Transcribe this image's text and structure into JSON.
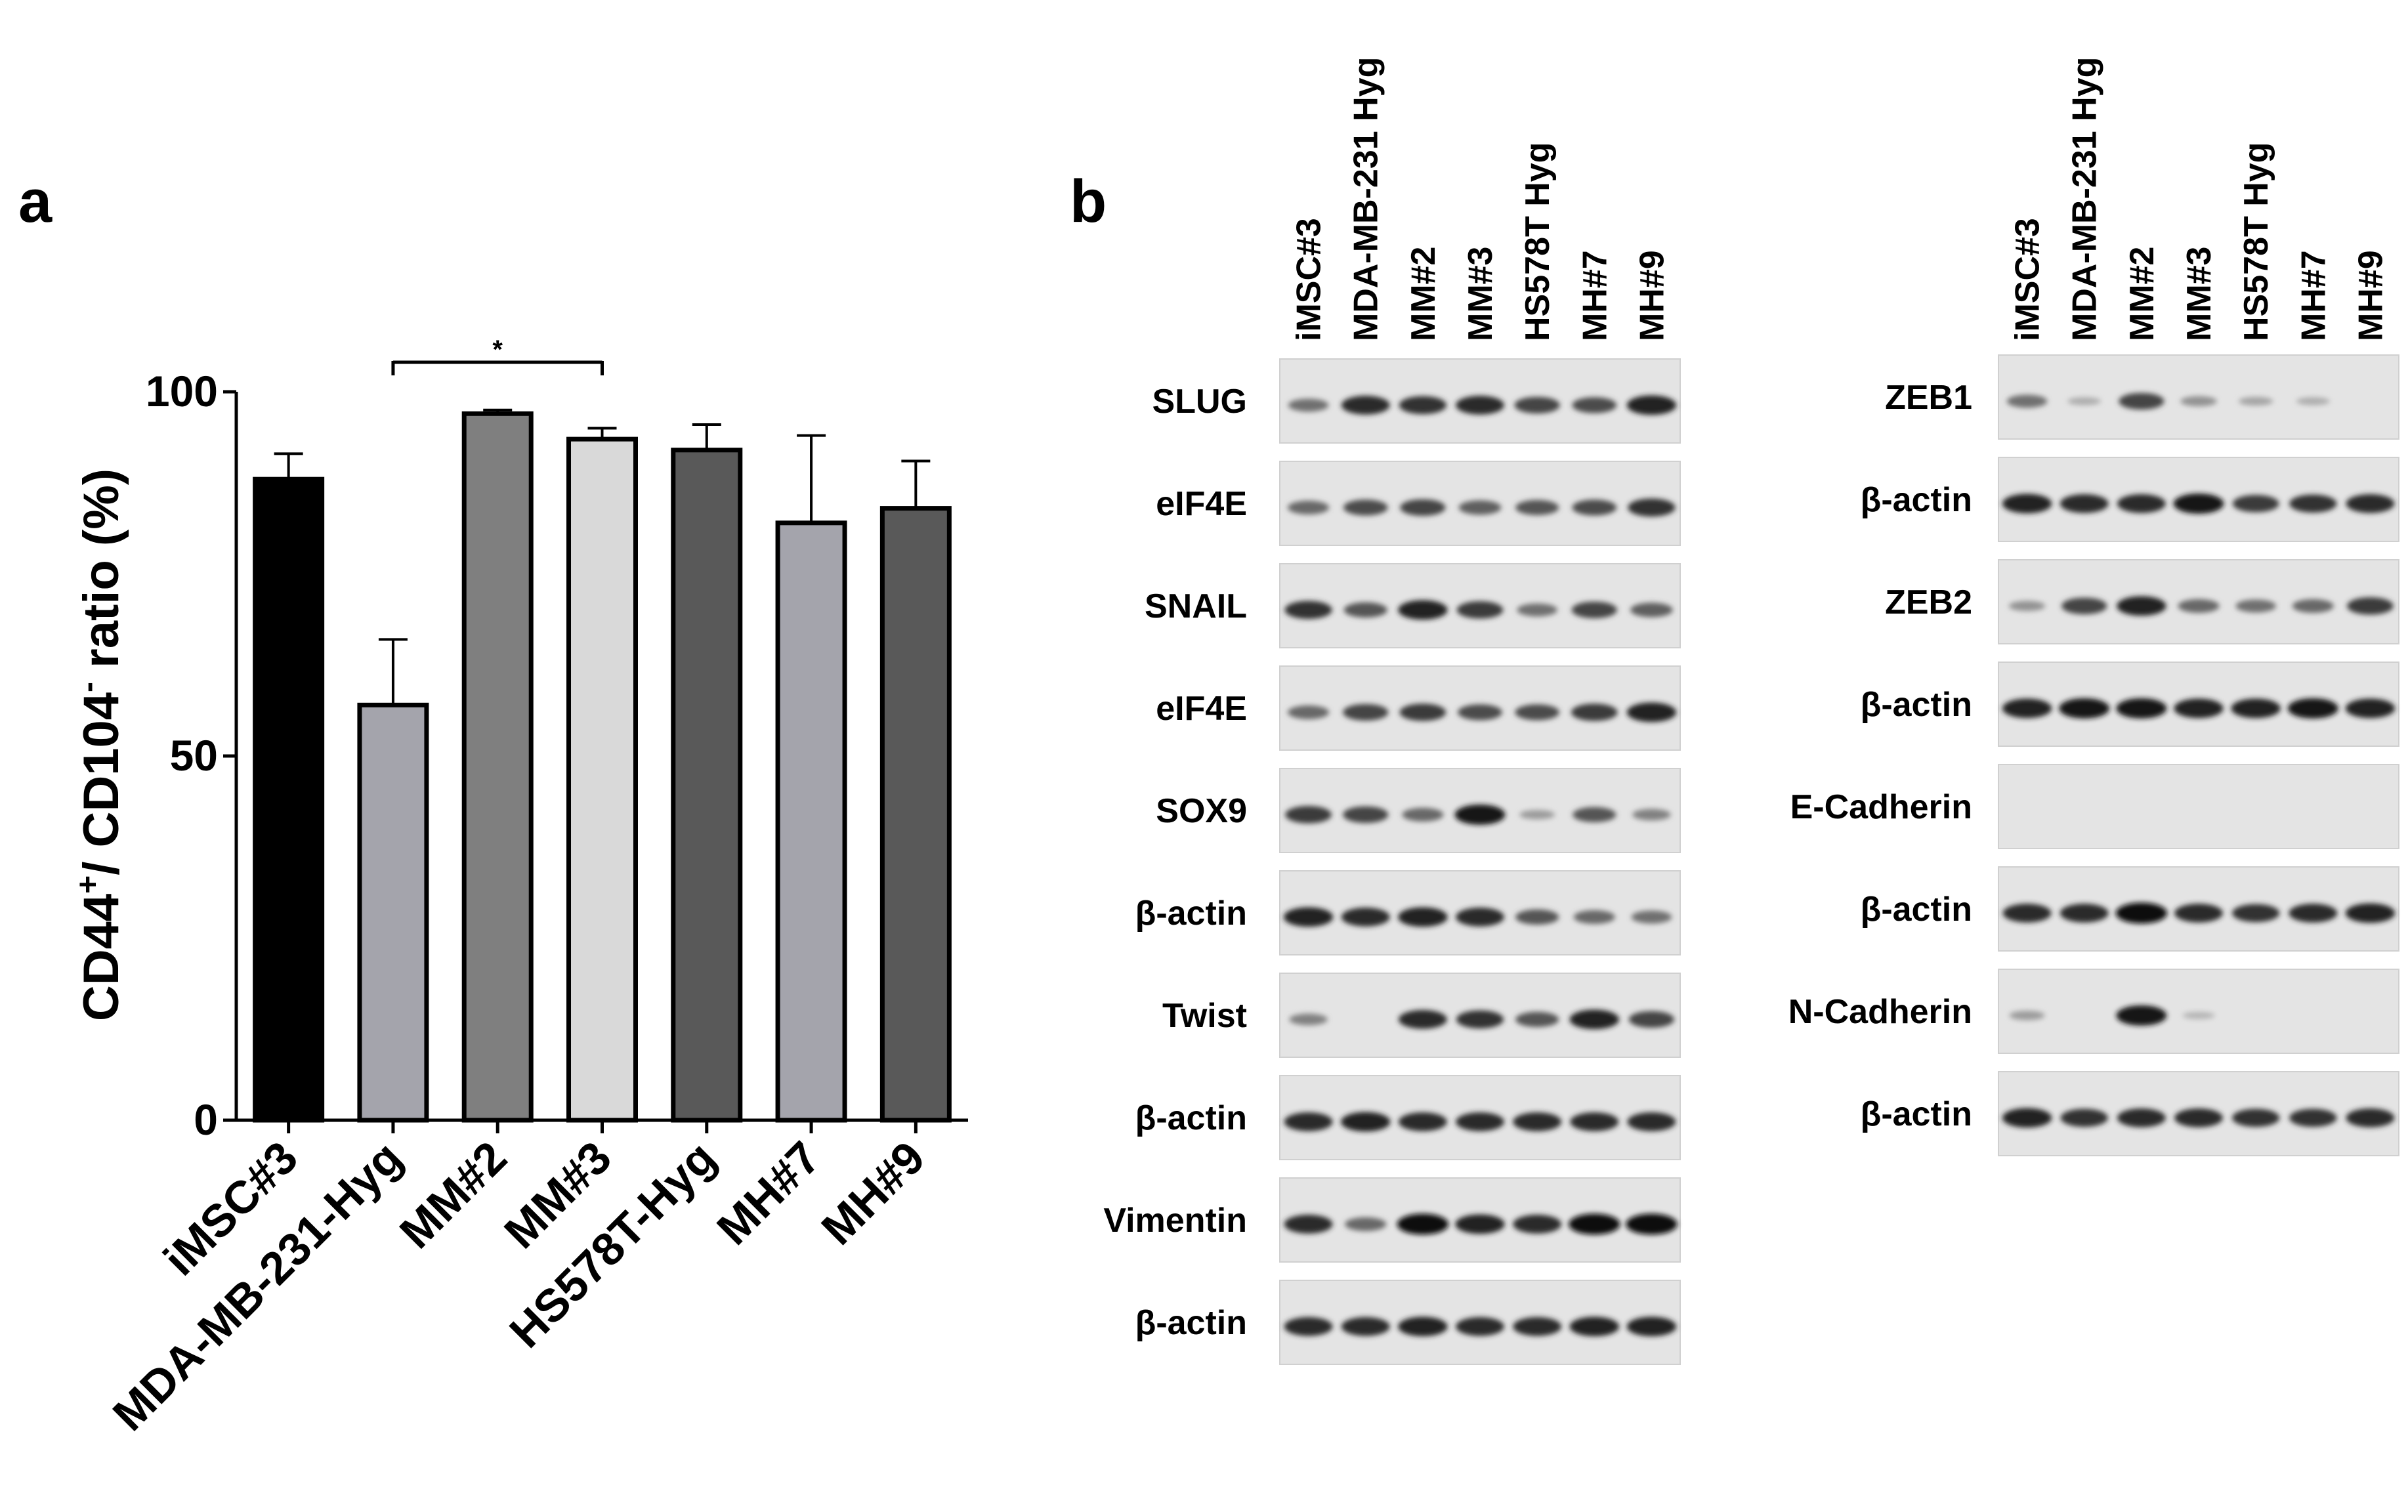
{
  "panel_a_letter": "a",
  "panel_b_letter": "b",
  "chart_data": {
    "type": "bar",
    "ylabel_parts": [
      "CD44",
      "+",
      "/ CD104",
      "-",
      " ratio (%)"
    ],
    "categories": [
      "iMSC#3",
      "MDA-MB-231-Hyg",
      "MM#2",
      "MM#3",
      "HS578T-Hyg",
      "MH#7",
      "MH#9"
    ],
    "values": [
      88,
      57,
      97,
      93.5,
      92,
      82,
      84
    ],
    "errors": [
      3.5,
      9,
      0.5,
      1.5,
      3.5,
      12,
      6.5
    ],
    "bar_colors": [
      "#000000",
      "#a4a4ac",
      "#7f7f7f",
      "#d9d9d9",
      "#595959",
      "#a4a4ac",
      "#595959"
    ],
    "ylim": [
      0,
      100
    ],
    "yticks": [
      0,
      50,
      100
    ],
    "significance": {
      "from": 1,
      "to": 3,
      "label": "*"
    }
  },
  "blot_left": {
    "lanes": [
      "iMSC#3",
      "MDA-MB-231 Hyg",
      "MM#2",
      "MM#3",
      "HS578T Hyg",
      "MH#7",
      "MH#9"
    ],
    "rows": [
      {
        "label": "SLUG",
        "intensity": [
          0.45,
          0.85,
          0.8,
          0.85,
          0.7,
          0.65,
          0.9
        ]
      },
      {
        "label": "eIF4E",
        "intensity": [
          0.5,
          0.65,
          0.7,
          0.55,
          0.6,
          0.65,
          0.8
        ]
      },
      {
        "label": "SNAIL",
        "intensity": [
          0.8,
          0.6,
          0.9,
          0.75,
          0.45,
          0.7,
          0.55
        ]
      },
      {
        "label": "eIF4E",
        "intensity": [
          0.5,
          0.7,
          0.75,
          0.65,
          0.65,
          0.75,
          0.9
        ]
      },
      {
        "label": "SOX9",
        "intensity": [
          0.75,
          0.7,
          0.5,
          0.95,
          0.2,
          0.6,
          0.35
        ]
      },
      {
        "label": "β-actin",
        "intensity": [
          0.9,
          0.85,
          0.9,
          0.85,
          0.6,
          0.5,
          0.45
        ]
      },
      {
        "label": "Twist",
        "intensity": [
          0.35,
          0.0,
          0.85,
          0.8,
          0.6,
          0.9,
          0.7
        ]
      },
      {
        "label": "β-actin",
        "intensity": [
          0.85,
          0.9,
          0.85,
          0.85,
          0.85,
          0.85,
          0.85
        ]
      },
      {
        "label": "Vimentin",
        "intensity": [
          0.85,
          0.5,
          1.0,
          0.9,
          0.85,
          1.0,
          1.0
        ]
      },
      {
        "label": "β-actin",
        "intensity": [
          0.85,
          0.85,
          0.9,
          0.85,
          0.85,
          0.9,
          0.9
        ]
      }
    ]
  },
  "blot_right": {
    "lanes": [
      "iMSC#3",
      "MDA-MB-231 Hyg",
      "MM#2",
      "MM#3",
      "HS578T Hyg",
      "MH#7",
      "MH#9"
    ],
    "rows": [
      {
        "label": "ZEB1",
        "intensity": [
          0.45,
          0.1,
          0.7,
          0.25,
          0.15,
          0.1,
          0.0
        ]
      },
      {
        "label": "β-actin",
        "intensity": [
          0.9,
          0.85,
          0.85,
          0.95,
          0.75,
          0.8,
          0.85
        ]
      },
      {
        "label": "ZEB2",
        "intensity": [
          0.25,
          0.7,
          0.9,
          0.5,
          0.45,
          0.5,
          0.75
        ]
      },
      {
        "label": "β-actin",
        "intensity": [
          0.9,
          0.95,
          0.95,
          0.9,
          0.9,
          0.95,
          0.9
        ]
      },
      {
        "label": "E-Cadherin",
        "intensity": [
          0,
          0,
          0,
          0,
          0,
          0,
          0
        ]
      },
      {
        "label": "β-actin",
        "intensity": [
          0.85,
          0.85,
          1.0,
          0.85,
          0.8,
          0.85,
          0.9
        ]
      },
      {
        "label": "N-Cadherin",
        "intensity": [
          0.2,
          0.0,
          0.95,
          0.05,
          0.0,
          0.0,
          0.0
        ]
      },
      {
        "label": "β-actin",
        "intensity": [
          0.9,
          0.8,
          0.85,
          0.85,
          0.8,
          0.8,
          0.85
        ]
      }
    ]
  }
}
